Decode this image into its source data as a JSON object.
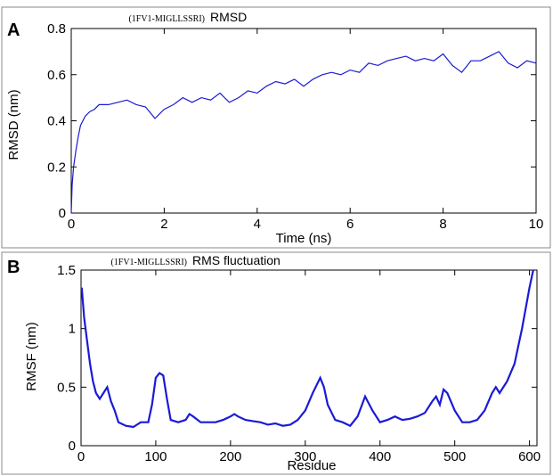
{
  "colors": {
    "series": "#1a1ad6",
    "frame": "#000000",
    "panel_border": "#888888"
  },
  "chart_data": [
    {
      "panel": "A",
      "type": "line",
      "title_prefix": "(1FV1-MIGLLSSRI)",
      "title": "RMSD",
      "xlabel": "Time (ns)",
      "ylabel": "RMSD (nm)",
      "xlim": [
        0,
        10
      ],
      "ylim": [
        0,
        0.8
      ],
      "xticks": [
        0,
        2,
        4,
        6,
        8,
        10
      ],
      "yticks": [
        0,
        0.2,
        0.4,
        0.6,
        0.8
      ],
      "xtick_labels": [
        "0",
        "2",
        "4",
        "6",
        "8",
        "10"
      ],
      "ytick_labels": [
        "0",
        "0.2",
        "0.4",
        "0.6",
        "0.8"
      ],
      "grid": false,
      "series": [
        {
          "x": [
            0,
            0.02,
            0.05,
            0.1,
            0.15,
            0.2,
            0.3,
            0.4,
            0.5,
            0.6,
            0.8,
            1.0,
            1.2,
            1.4,
            1.6,
            1.8,
            2.0,
            2.2,
            2.4,
            2.6,
            2.8,
            3.0,
            3.2,
            3.4,
            3.6,
            3.8,
            4.0,
            4.2,
            4.4,
            4.6,
            4.8,
            5.0,
            5.2,
            5.4,
            5.6,
            5.8,
            6.0,
            6.2,
            6.4,
            6.6,
            6.8,
            7.0,
            7.2,
            7.4,
            7.6,
            7.8,
            8.0,
            8.2,
            8.4,
            8.6,
            8.8,
            9.0,
            9.2,
            9.4,
            9.6,
            9.8,
            10.0
          ],
          "y": [
            0.0,
            0.12,
            0.2,
            0.27,
            0.33,
            0.38,
            0.42,
            0.44,
            0.45,
            0.47,
            0.47,
            0.48,
            0.49,
            0.47,
            0.46,
            0.41,
            0.45,
            0.47,
            0.5,
            0.48,
            0.5,
            0.49,
            0.52,
            0.48,
            0.5,
            0.53,
            0.52,
            0.55,
            0.57,
            0.56,
            0.58,
            0.55,
            0.58,
            0.6,
            0.61,
            0.6,
            0.62,
            0.61,
            0.65,
            0.64,
            0.66,
            0.67,
            0.68,
            0.66,
            0.67,
            0.66,
            0.69,
            0.64,
            0.61,
            0.66,
            0.66,
            0.68,
            0.7,
            0.65,
            0.63,
            0.66,
            0.65
          ]
        }
      ]
    },
    {
      "panel": "B",
      "type": "line",
      "title_prefix": "(1FV1-MIGLLSSRI)",
      "title": "RMS fluctuation",
      "xlabel": "Residue",
      "ylabel": "RMSF (nm)",
      "xlim": [
        0,
        610
      ],
      "ylim": [
        0,
        1.5
      ],
      "xticks": [
        0,
        100,
        200,
        300,
        400,
        500,
        600
      ],
      "yticks": [
        0,
        0.5,
        1,
        1.5
      ],
      "xtick_labels": [
        "0",
        "100",
        "200",
        "300",
        "400",
        "500",
        "600"
      ],
      "ytick_labels": [
        "0",
        "0.5",
        "1",
        "1.5"
      ],
      "grid": false,
      "series": [
        {
          "x": [
            1,
            4,
            8,
            12,
            16,
            20,
            25,
            30,
            35,
            40,
            45,
            50,
            60,
            70,
            80,
            90,
            95,
            100,
            105,
            110,
            115,
            120,
            130,
            140,
            145,
            150,
            160,
            170,
            180,
            190,
            200,
            205,
            210,
            220,
            230,
            240,
            250,
            260,
            270,
            280,
            290,
            300,
            310,
            320,
            325,
            330,
            340,
            350,
            360,
            370,
            380,
            390,
            400,
            410,
            420,
            430,
            440,
            450,
            460,
            470,
            475,
            480,
            485,
            490,
            500,
            510,
            520,
            530,
            540,
            550,
            555,
            560,
            570,
            580,
            590,
            600,
            605
          ],
          "y": [
            1.35,
            1.1,
            0.9,
            0.7,
            0.55,
            0.45,
            0.4,
            0.45,
            0.5,
            0.38,
            0.3,
            0.2,
            0.17,
            0.16,
            0.2,
            0.2,
            0.35,
            0.58,
            0.62,
            0.6,
            0.4,
            0.22,
            0.2,
            0.22,
            0.27,
            0.25,
            0.2,
            0.2,
            0.2,
            0.22,
            0.25,
            0.27,
            0.25,
            0.22,
            0.21,
            0.2,
            0.18,
            0.19,
            0.17,
            0.18,
            0.22,
            0.3,
            0.45,
            0.58,
            0.5,
            0.35,
            0.22,
            0.2,
            0.17,
            0.25,
            0.42,
            0.3,
            0.2,
            0.22,
            0.25,
            0.22,
            0.23,
            0.25,
            0.28,
            0.38,
            0.42,
            0.35,
            0.48,
            0.45,
            0.3,
            0.2,
            0.2,
            0.22,
            0.3,
            0.45,
            0.5,
            0.45,
            0.55,
            0.7,
            1.0,
            1.35,
            1.5
          ]
        }
      ]
    }
  ]
}
